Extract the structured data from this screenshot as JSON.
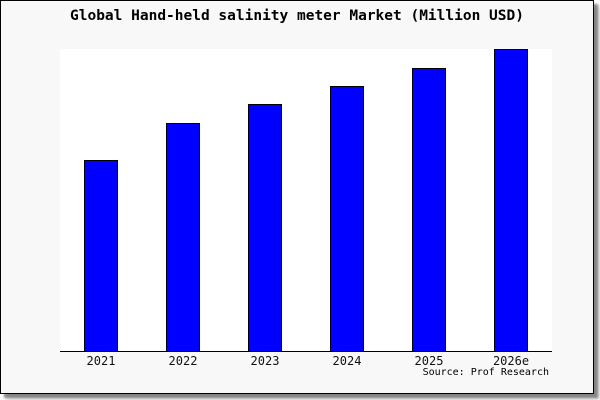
{
  "card": {
    "title": "Global Hand-held salinity meter Market (Million USD)",
    "source": "Source: Prof Research",
    "bg_color": "#f8f8f8",
    "border_color": "#000000"
  },
  "chart_data": {
    "type": "bar",
    "title": "Global Hand-held salinity meter Market (Million USD)",
    "categories": [
      "2021",
      "2022",
      "2023",
      "2024",
      "2025",
      "2026e"
    ],
    "values": [
      63,
      75.4,
      81.6,
      87.8,
      93.8,
      100
    ],
    "value_note": "No y-axis or data labels shown; values are a relative index estimated from bar heights with 2026e = 100",
    "xlabel": "",
    "ylabel": "",
    "ylim": [
      0,
      100.3
    ],
    "grid": false,
    "legend": false,
    "bar_color": "#0000ff",
    "bar_border_color": "#000000",
    "plot_bg": "#ffffff",
    "axis_color": "#000000",
    "source_annotation": "Source: Prof Research"
  }
}
